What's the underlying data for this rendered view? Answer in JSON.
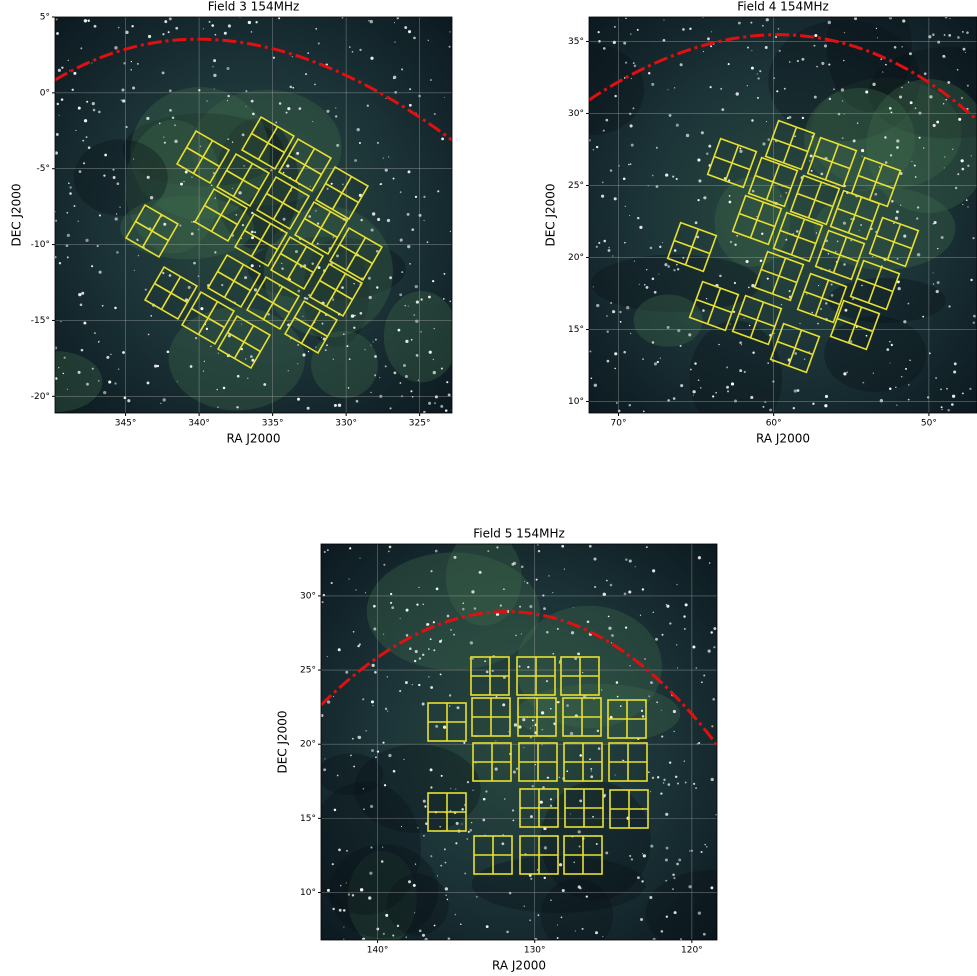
{
  "chart_data": [
    {
      "type": "image",
      "title": "Field 3 154MHz",
      "x_label": "RA J2000",
      "y_label": "DEC J2000",
      "xlim": [
        349.8,
        322.8
      ],
      "ylim": [
        -21.1,
        5
      ],
      "xticks": [
        {
          "value": 345,
          "label": "345°"
        },
        {
          "value": 340,
          "label": "340°"
        },
        {
          "value": 335,
          "label": "335°"
        },
        {
          "value": 330,
          "label": "330°"
        },
        {
          "value": 325,
          "label": "325°"
        }
      ],
      "yticks": [
        {
          "value": 5,
          "label": "5°"
        },
        {
          "value": 0,
          "label": "0°"
        },
        {
          "value": -5,
          "label": "-5°"
        },
        {
          "value": -10,
          "label": "-10°"
        },
        {
          "value": -15,
          "label": "-15°"
        },
        {
          "value": -20,
          "label": "-20°"
        }
      ],
      "grid": true
    },
    {
      "type": "image",
      "title": "Field 4 154MHz",
      "x_label": "RA J2000",
      "y_label": "DEC J2000",
      "xlim": [
        71.9,
        46.9
      ],
      "ylim": [
        9.2,
        36.7
      ],
      "xticks": [
        {
          "value": 70,
          "label": "70°"
        },
        {
          "value": 60,
          "label": "60°"
        },
        {
          "value": 50,
          "label": "50°"
        }
      ],
      "yticks": [
        {
          "value": 35,
          "label": "35°"
        },
        {
          "value": 30,
          "label": "30°"
        },
        {
          "value": 25,
          "label": "25°"
        },
        {
          "value": 20,
          "label": "20°"
        },
        {
          "value": 15,
          "label": "15°"
        },
        {
          "value": 10,
          "label": "10°"
        }
      ],
      "grid": true
    },
    {
      "type": "image",
      "title": "Field 5 154MHz",
      "x_label": "RA J2000",
      "y_label": "DEC J2000",
      "xlim": [
        143.6,
        118.4
      ],
      "ylim": [
        6.8,
        33.5
      ],
      "xticks": [
        {
          "value": 140,
          "label": "140°"
        },
        {
          "value": 130,
          "label": "130°"
        },
        {
          "value": 120,
          "label": "120°"
        }
      ],
      "yticks": [
        {
          "value": 30,
          "label": "30°"
        },
        {
          "value": 25,
          "label": "25°"
        },
        {
          "value": 20,
          "label": "20°"
        },
        {
          "value": 15,
          "label": "15°"
        },
        {
          "value": 10,
          "label": "10°"
        }
      ],
      "grid": true
    }
  ]
}
